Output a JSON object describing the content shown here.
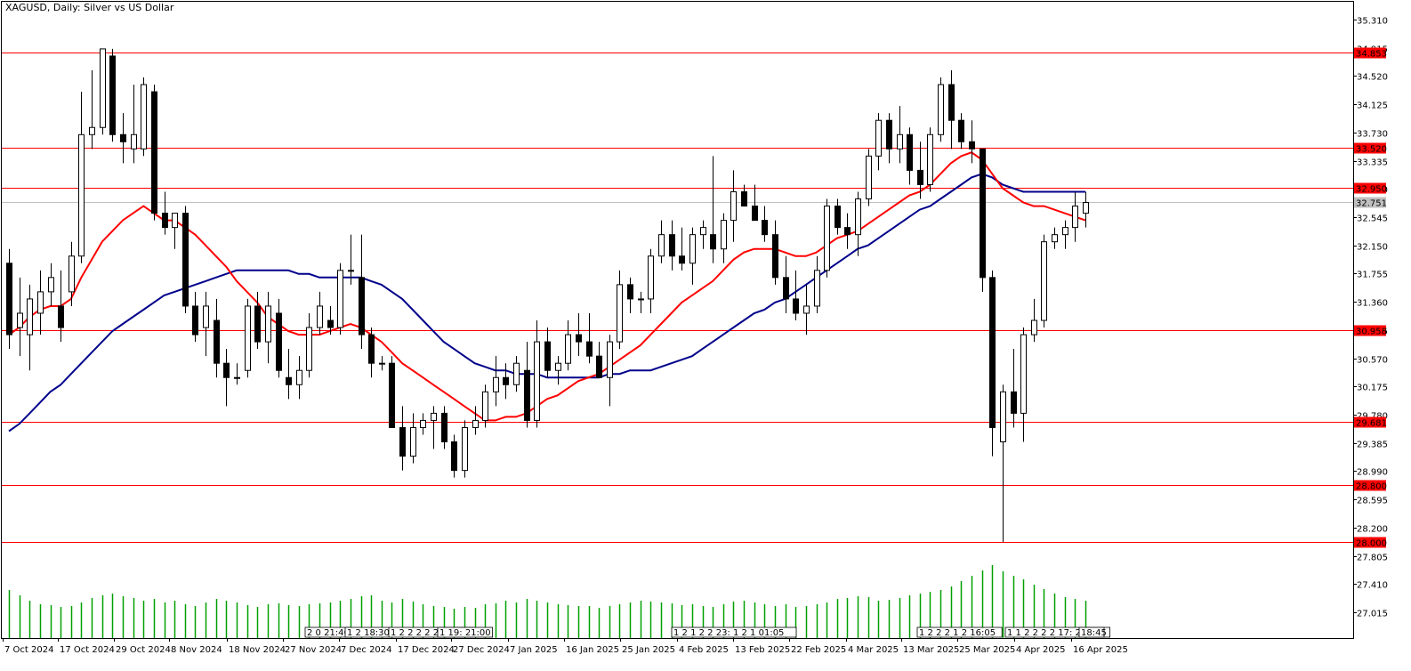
{
  "window": {
    "title": "XAGUSD, Daily:  Silver vs US Dollar"
  },
  "colors": {
    "background": "#ffffff",
    "bull_candle": "#ffffff",
    "bear_candle": "#000000",
    "candle_outline": "#000000",
    "ma_fast": "#ff0000",
    "ma_slow": "#00008b",
    "level_line": "#ff0000",
    "current_price_line": "#c0c0c0",
    "volume_bar": "#00a000",
    "label_text": "#ffffff"
  },
  "chart_data": {
    "type": "candlestick",
    "symbol": "XAGUSD",
    "timeframe": "Daily",
    "description": "Silver vs US Dollar",
    "price_axis": {
      "range": [
        27.5,
        35.5
      ],
      "ticks": [
        "35.310",
        "34.915",
        "34.520",
        "34.125",
        "33.730",
        "33.335",
        "32.940",
        "32.545",
        "32.150",
        "31.755",
        "31.360",
        "30.965",
        "30.570",
        "30.175",
        "29.780",
        "29.385",
        "28.990",
        "28.595",
        "28.200",
        "27.805",
        "27.410",
        "27.015"
      ]
    },
    "x_axis_labels": [
      "7 Oct 2024",
      "17 Oct 2024",
      "29 Oct 2024",
      "8 Nov 2024",
      "18 Nov 2024",
      "27 Nov 2024",
      "7 Dec 2024",
      "17 Dec 2024",
      "27 Dec 2024",
      "7 Jan 2025",
      "16 Jan 2025",
      "25 Jan 2025",
      "4 Feb 2025",
      "13 Feb 2025",
      "22 Feb 2025",
      "4 Mar 2025",
      "13 Mar 2025",
      "25 Mar 2025",
      "4 Apr 2025",
      "16 Apr 2025"
    ],
    "levels": [
      {
        "label": "34.853",
        "value": 34.853
      },
      {
        "label": "33.520",
        "value": 33.52
      },
      {
        "label": "32.950",
        "value": 32.95
      },
      {
        "label": "30.958",
        "value": 30.958
      },
      {
        "label": "29.681",
        "value": 29.681
      },
      {
        "label": "28.800",
        "value": 28.8
      },
      {
        "label": "28.000",
        "value": 28.0
      }
    ],
    "current_price": {
      "label": "32.751",
      "value": 32.751
    },
    "grid": false,
    "legend": "none",
    "ohlc": [
      [
        31.9,
        32.1,
        30.7,
        30.9
      ],
      [
        31.0,
        31.7,
        30.6,
        31.2
      ],
      [
        30.9,
        31.6,
        30.4,
        31.4
      ],
      [
        31.2,
        31.8,
        30.9,
        31.5
      ],
      [
        31.5,
        31.9,
        31.3,
        31.7
      ],
      [
        31.3,
        31.8,
        30.8,
        31.0
      ],
      [
        31.5,
        32.2,
        31.3,
        32.0
      ],
      [
        32.0,
        34.3,
        31.9,
        33.7
      ],
      [
        33.7,
        34.6,
        33.5,
        33.8
      ],
      [
        33.8,
        34.9,
        33.7,
        34.9
      ],
      [
        34.8,
        34.9,
        33.6,
        33.7
      ],
      [
        33.7,
        34.0,
        33.3,
        33.6
      ],
      [
        33.5,
        34.4,
        33.3,
        33.7
      ],
      [
        33.5,
        34.5,
        33.4,
        34.4
      ],
      [
        34.3,
        34.4,
        32.5,
        32.6
      ],
      [
        32.6,
        32.9,
        32.3,
        32.4
      ],
      [
        32.4,
        32.6,
        32.1,
        32.6
      ],
      [
        32.6,
        32.7,
        31.2,
        31.3
      ],
      [
        31.3,
        31.5,
        30.8,
        30.9
      ],
      [
        31.0,
        31.5,
        30.6,
        31.3
      ],
      [
        31.1,
        31.4,
        30.3,
        30.5
      ],
      [
        30.5,
        30.7,
        29.9,
        30.3
      ],
      [
        30.3,
        30.5,
        30.2,
        30.3
      ],
      [
        30.4,
        31.4,
        30.3,
        31.3
      ],
      [
        31.3,
        31.5,
        30.7,
        30.8
      ],
      [
        30.8,
        31.5,
        30.5,
        31.3
      ],
      [
        31.2,
        31.4,
        30.3,
        30.4
      ],
      [
        30.3,
        30.7,
        30.0,
        30.2
      ],
      [
        30.2,
        30.6,
        30.0,
        30.4
      ],
      [
        30.4,
        31.2,
        30.3,
        31.0
      ],
      [
        31.0,
        31.5,
        30.9,
        31.3
      ],
      [
        31.1,
        31.3,
        30.9,
        31.0
      ],
      [
        31.0,
        31.9,
        30.9,
        31.8
      ],
      [
        31.8,
        32.3,
        31.6,
        31.8
      ],
      [
        31.7,
        32.3,
        30.7,
        30.9
      ],
      [
        30.9,
        31.0,
        30.3,
        30.5
      ],
      [
        30.5,
        30.6,
        30.4,
        30.5
      ],
      [
        30.5,
        30.6,
        29.6,
        29.6
      ],
      [
        29.6,
        29.9,
        29.0,
        29.2
      ],
      [
        29.2,
        29.8,
        29.1,
        29.6
      ],
      [
        29.6,
        29.8,
        29.5,
        29.7
      ],
      [
        29.7,
        29.9,
        29.3,
        29.8
      ],
      [
        29.8,
        29.9,
        29.3,
        29.4
      ],
      [
        29.4,
        29.5,
        28.9,
        29.0
      ],
      [
        29.0,
        29.7,
        28.9,
        29.6
      ],
      [
        29.6,
        29.9,
        29.5,
        29.7
      ],
      [
        29.7,
        30.2,
        29.6,
        30.1
      ],
      [
        30.1,
        30.6,
        29.9,
        30.3
      ],
      [
        30.3,
        30.5,
        30.0,
        30.2
      ],
      [
        30.2,
        30.6,
        30.1,
        30.5
      ],
      [
        30.4,
        30.8,
        29.6,
        29.7
      ],
      [
        29.7,
        31.1,
        29.6,
        30.8
      ],
      [
        30.8,
        31.0,
        30.3,
        30.4
      ],
      [
        30.4,
        30.6,
        30.2,
        30.5
      ],
      [
        30.5,
        31.1,
        30.4,
        30.9
      ],
      [
        30.9,
        31.2,
        30.6,
        30.8
      ],
      [
        30.8,
        31.2,
        30.5,
        30.6
      ],
      [
        30.6,
        30.8,
        30.3,
        30.3
      ],
      [
        30.3,
        30.9,
        29.9,
        30.8
      ],
      [
        30.8,
        31.8,
        30.7,
        31.6
      ],
      [
        31.6,
        31.7,
        31.2,
        31.4
      ],
      [
        31.4,
        31.5,
        31.2,
        31.4
      ],
      [
        31.4,
        32.1,
        31.2,
        32.0
      ],
      [
        32.0,
        32.5,
        31.9,
        32.3
      ],
      [
        32.3,
        32.5,
        31.8,
        32.0
      ],
      [
        32.0,
        32.4,
        31.8,
        31.9
      ],
      [
        31.9,
        32.4,
        31.6,
        32.3
      ],
      [
        32.3,
        32.5,
        32.1,
        32.4
      ],
      [
        32.3,
        33.4,
        31.9,
        32.1
      ],
      [
        32.1,
        32.6,
        31.9,
        32.5
      ],
      [
        32.5,
        33.2,
        32.2,
        32.9
      ],
      [
        32.9,
        33.0,
        32.7,
        32.7
      ],
      [
        32.7,
        33.0,
        32.5,
        32.5
      ],
      [
        32.5,
        32.7,
        32.2,
        32.3
      ],
      [
        32.3,
        32.5,
        31.6,
        31.7
      ],
      [
        31.7,
        32.0,
        31.2,
        31.4
      ],
      [
        31.4,
        31.8,
        31.1,
        31.2
      ],
      [
        31.2,
        31.6,
        30.9,
        31.3
      ],
      [
        31.3,
        32.0,
        31.2,
        31.8
      ],
      [
        31.8,
        32.8,
        31.7,
        32.7
      ],
      [
        32.7,
        32.8,
        32.3,
        32.4
      ],
      [
        32.4,
        32.6,
        32.1,
        32.3
      ],
      [
        32.3,
        32.9,
        32.0,
        32.8
      ],
      [
        32.8,
        33.5,
        32.7,
        33.4
      ],
      [
        33.4,
        34.0,
        33.2,
        33.9
      ],
      [
        33.9,
        34.0,
        33.3,
        33.5
      ],
      [
        33.5,
        34.1,
        33.3,
        33.7
      ],
      [
        33.7,
        33.8,
        33.0,
        33.2
      ],
      [
        33.2,
        33.6,
        32.8,
        33.0
      ],
      [
        33.0,
        33.8,
        32.9,
        33.7
      ],
      [
        33.7,
        34.5,
        33.6,
        34.4
      ],
      [
        34.4,
        34.6,
        33.5,
        33.9
      ],
      [
        33.9,
        34.0,
        33.5,
        33.6
      ],
      [
        33.6,
        33.9,
        33.3,
        33.5
      ],
      [
        33.5,
        33.5,
        31.5,
        31.7
      ],
      [
        31.7,
        31.8,
        29.2,
        29.6
      ],
      [
        29.4,
        30.2,
        28.0,
        30.1
      ],
      [
        30.1,
        30.7,
        29.6,
        29.8
      ],
      [
        29.8,
        31.0,
        29.4,
        30.9
      ],
      [
        30.9,
        31.4,
        30.8,
        31.1
      ],
      [
        31.1,
        32.3,
        31.0,
        32.2
      ],
      [
        32.2,
        32.4,
        32.1,
        32.3
      ],
      [
        32.3,
        32.5,
        32.1,
        32.4
      ],
      [
        32.4,
        32.9,
        32.2,
        32.7
      ],
      [
        32.6,
        32.9,
        32.4,
        32.75
      ]
    ],
    "ma_fast_values": [
      30.9,
      31.0,
      31.15,
      31.25,
      31.3,
      31.3,
      31.4,
      31.7,
      31.95,
      32.2,
      32.35,
      32.5,
      32.6,
      32.7,
      32.6,
      32.5,
      32.5,
      32.4,
      32.3,
      32.15,
      32.0,
      31.85,
      31.65,
      31.5,
      31.35,
      31.15,
      31.05,
      30.95,
      30.9,
      30.9,
      30.9,
      30.95,
      31.0,
      31.05,
      31.0,
      30.9,
      30.8,
      30.65,
      30.5,
      30.4,
      30.3,
      30.2,
      30.1,
      30.0,
      29.9,
      29.8,
      29.7,
      29.7,
      29.75,
      29.75,
      29.8,
      29.9,
      30.0,
      30.05,
      30.15,
      30.25,
      30.3,
      30.35,
      30.45,
      30.55,
      30.65,
      30.75,
      30.9,
      31.05,
      31.2,
      31.35,
      31.45,
      31.55,
      31.65,
      31.8,
      31.95,
      32.05,
      32.1,
      32.1,
      32.1,
      32.05,
      32.0,
      32.0,
      32.05,
      32.15,
      32.25,
      32.3,
      32.35,
      32.45,
      32.55,
      32.65,
      32.75,
      32.85,
      32.9,
      33.0,
      33.15,
      33.3,
      33.4,
      33.45,
      33.35,
      33.15,
      32.95,
      32.85,
      32.75,
      32.7,
      32.7,
      32.65,
      32.6,
      32.55,
      32.5
    ],
    "ma_slow_values": [
      29.55,
      29.65,
      29.8,
      29.95,
      30.1,
      30.2,
      30.35,
      30.5,
      30.65,
      30.8,
      30.95,
      31.05,
      31.15,
      31.25,
      31.35,
      31.45,
      31.5,
      31.55,
      31.6,
      31.65,
      31.7,
      31.75,
      31.8,
      31.8,
      31.8,
      31.8,
      31.8,
      31.8,
      31.75,
      31.75,
      31.7,
      31.7,
      31.7,
      31.7,
      31.7,
      31.65,
      31.6,
      31.5,
      31.4,
      31.25,
      31.1,
      30.95,
      30.8,
      30.7,
      30.6,
      30.5,
      30.45,
      30.4,
      30.4,
      30.35,
      30.35,
      30.35,
      30.3,
      30.3,
      30.3,
      30.3,
      30.3,
      30.3,
      30.35,
      30.35,
      30.4,
      30.4,
      30.4,
      30.45,
      30.5,
      30.55,
      30.6,
      30.7,
      30.8,
      30.9,
      31.0,
      31.1,
      31.2,
      31.25,
      31.35,
      31.4,
      31.5,
      31.6,
      31.7,
      31.8,
      31.9,
      32.0,
      32.1,
      32.15,
      32.25,
      32.35,
      32.45,
      32.55,
      32.65,
      32.7,
      32.8,
      32.9,
      33.0,
      33.1,
      33.15,
      33.1,
      33.0,
      32.95,
      32.9,
      32.9,
      32.9,
      32.9,
      32.9,
      32.9,
      32.9
    ],
    "volumes": [
      54,
      48,
      42,
      38,
      37,
      35,
      36,
      40,
      45,
      48,
      50,
      47,
      45,
      42,
      44,
      40,
      42,
      38,
      36,
      40,
      44,
      42,
      40,
      37,
      35,
      38,
      39,
      37,
      36,
      38,
      39,
      40,
      42,
      44,
      47,
      48,
      42,
      40,
      44,
      41,
      38,
      36,
      35,
      33,
      35,
      34,
      38,
      39,
      42,
      40,
      44,
      42,
      40,
      38,
      37,
      36,
      36,
      34,
      36,
      38,
      40,
      42,
      41,
      40,
      39,
      37,
      38,
      36,
      35,
      38,
      41,
      42,
      40,
      38,
      36,
      38,
      35,
      36,
      38,
      40,
      44,
      45,
      47,
      46,
      42,
      43,
      45,
      48,
      50,
      52,
      54,
      58,
      64,
      70,
      76,
      82,
      75,
      70,
      66,
      60,
      55,
      50,
      46,
      44,
      42
    ]
  },
  "axis_scale": {
    "time_markers": [
      "2 0 21:40",
      "1 2 18:30",
      "1 2 2 2 2 2 23: 1",
      "1 19: 21:00",
      "1 2 1 2 2 23: 1 2 1 01:05",
      "1 2 2 2 1 2 16:05",
      "1 1 2 2 2 2 17: 20: 2",
      "18:45"
    ]
  }
}
